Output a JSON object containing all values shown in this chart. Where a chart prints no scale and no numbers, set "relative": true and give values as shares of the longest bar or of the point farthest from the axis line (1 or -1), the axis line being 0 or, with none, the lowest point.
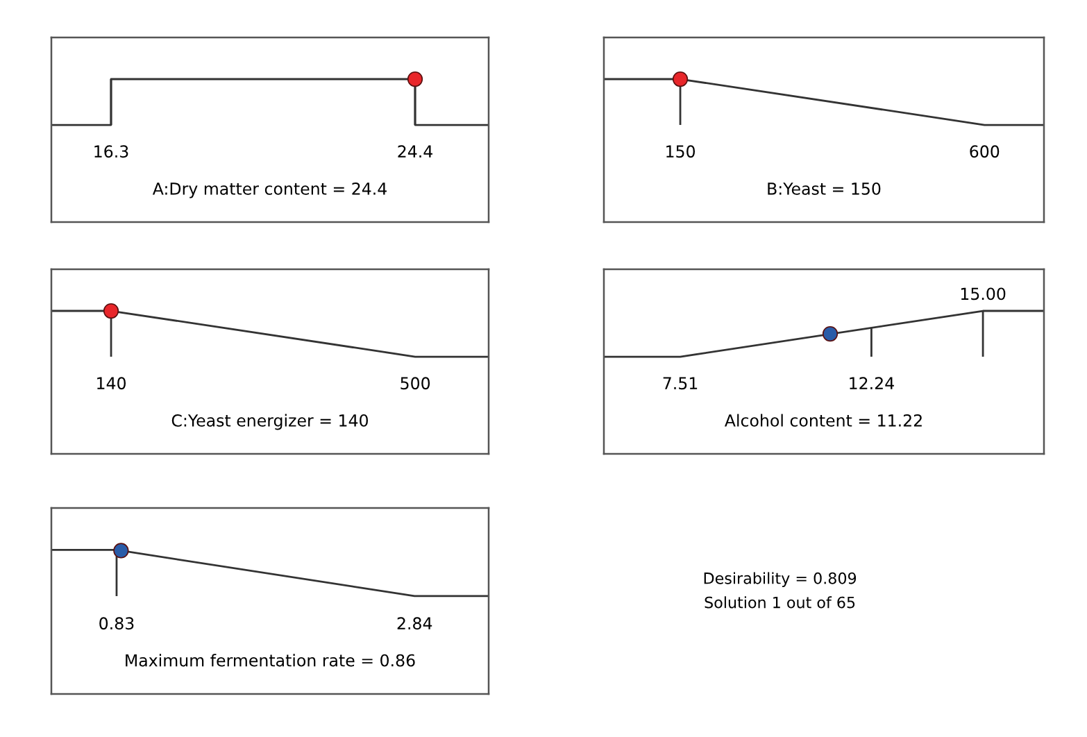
{
  "chart_data": [
    {
      "type": "line",
      "relative": true,
      "xlabel": "A:Dry matter content = 24.4",
      "xlim": [
        14.71,
        26.36
      ],
      "xticks": [
        16.3,
        24.4
      ],
      "series": [
        {
          "type": "line",
          "color": "#333333",
          "x": [
            14.71,
            16.3,
            16.3,
            24.4,
            24.4,
            26.36
          ],
          "values": [
            0,
            0,
            1,
            1,
            0,
            0
          ]
        },
        {
          "type": "scatter",
          "color": "#e8262a",
          "x": [
            24.4
          ],
          "values": [
            1
          ]
        }
      ]
    },
    {
      "type": "line",
      "relative": true,
      "xlabel": "B:Yeast = 150",
      "xlim": [
        37,
        688
      ],
      "xticks": [
        150,
        600
      ],
      "series": [
        {
          "type": "line",
          "color": "#333333",
          "x": [
            37,
            150,
            600,
            688
          ],
          "values": [
            1,
            1,
            0,
            0
          ]
        },
        {
          "type": "scatter",
          "color": "#e8262a",
          "x": [
            150
          ],
          "values": [
            1
          ]
        }
      ]
    },
    {
      "type": "line",
      "relative": true,
      "xlabel": "C:Yeast energizer = 140",
      "xlim": [
        69.3,
        587
      ],
      "xticks": [
        140,
        500
      ],
      "series": [
        {
          "type": "line",
          "color": "#333333",
          "x": [
            69.3,
            140,
            500,
            587
          ],
          "values": [
            1,
            1,
            0,
            0
          ]
        },
        {
          "type": "scatter",
          "color": "#e8262a",
          "x": [
            140
          ],
          "values": [
            1
          ]
        }
      ]
    },
    {
      "type": "line",
      "relative": true,
      "xlabel": "Alcohol content = 11.22",
      "xlim": [
        5.62,
        16.51
      ],
      "xticks": [
        7.51,
        12.24
      ],
      "annotations": [
        {
          "text": "15.00",
          "x": 15,
          "y": 1
        }
      ],
      "series": [
        {
          "type": "line",
          "color": "#333333",
          "x": [
            5.62,
            7.51,
            15,
            16.51
          ],
          "values": [
            0,
            0,
            1,
            1
          ]
        },
        {
          "type": "scatter",
          "color": "#2a5ca8",
          "x": [
            11.22
          ],
          "values": [
            0.5
          ]
        }
      ]
    },
    {
      "type": "line",
      "relative": true,
      "xlabel": "Maximum fermentation rate = 0.86",
      "xlim": [
        0.39,
        3.34
      ],
      "xticks": [
        0.83,
        2.84
      ],
      "series": [
        {
          "type": "line",
          "color": "#333333",
          "x": [
            0.39,
            0.83,
            2.84,
            3.34
          ],
          "values": [
            1,
            1,
            0,
            0
          ]
        },
        {
          "type": "scatter",
          "color": "#2a5ca8",
          "x": [
            0.86
          ],
          "values": [
            0.985
          ]
        }
      ]
    },
    {
      "type": "other",
      "annotations": [
        "Desirability = 0.809",
        "Solution 1 out of 65"
      ]
    }
  ]
}
